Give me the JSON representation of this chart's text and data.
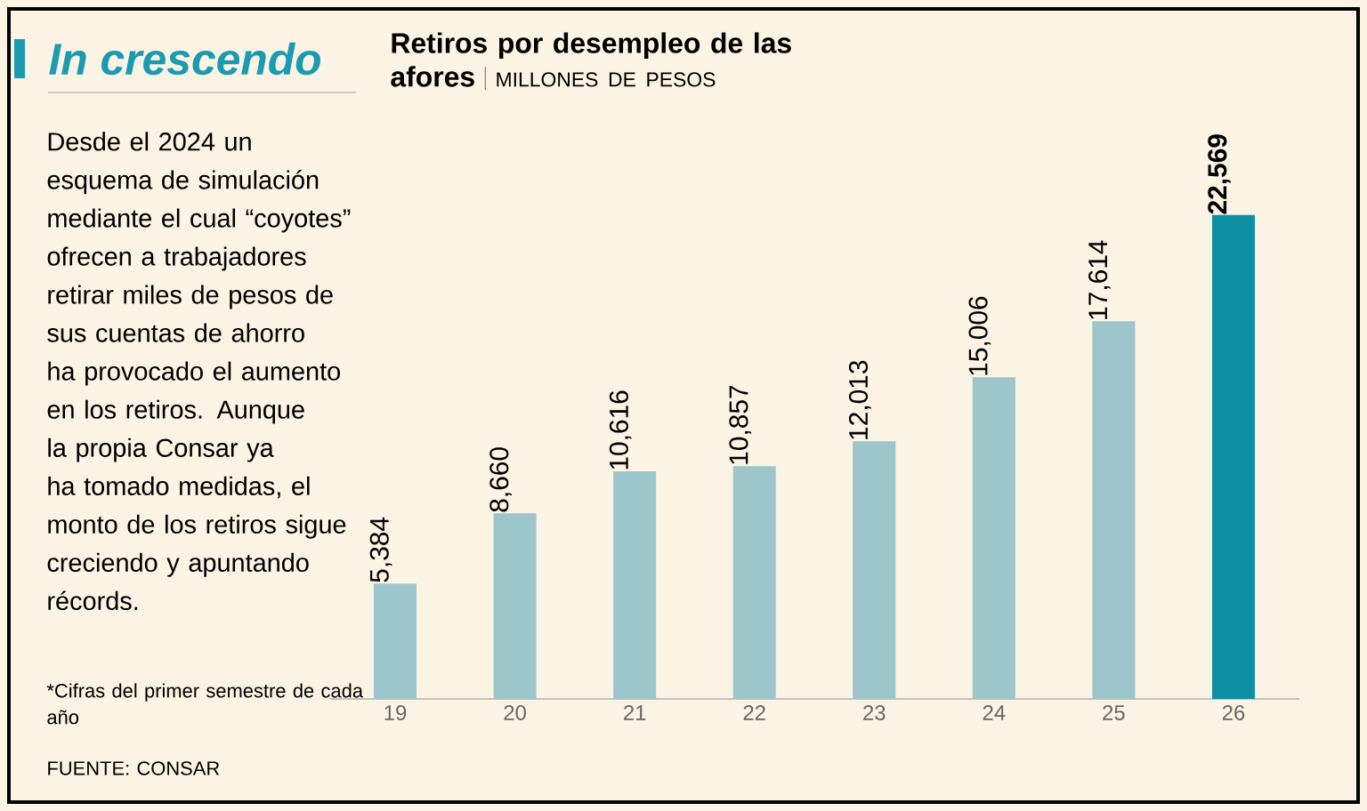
{
  "chart_data": {
    "type": "bar",
    "title": "In crescendo",
    "subtitle": "Retiros por desempleo de las afores",
    "categories": [
      "19",
      "20",
      "21",
      "22",
      "23",
      "24",
      "25",
      "26"
    ],
    "values": [
      5384,
      8660,
      10616,
      10857,
      12013,
      15006,
      17614,
      22569
    ],
    "colors": [
      "#9cc5cc",
      "#9cc5cc",
      "#9cc5cc",
      "#9cc5cc",
      "#9cc5cc",
      "#9cc5cc",
      "#9cc5cc",
      "#0e8fa3"
    ],
    "value_labels": [
      "5,384",
      "8,660",
      "10,616",
      "10,857",
      "12,013",
      "15,006",
      "17,614",
      "22,569"
    ],
    "annotations": [
      "MILLONES DE PESOS",
      "Desde el 2024 un esquema de simulación mediante el cual “coyotes” ofrecen a trabajadores retirar miles de pesos de sus cuentas de ahorro ha provocado el aumento en los retiros. Aunque la propia Consar ya ha tomado medidas, el monto de los retiros sigue creciendo y apuntando récords.",
      "*Cifras del primer semestre de cada año",
      "FUENTE: CONSAR"
    ]
  }
}
